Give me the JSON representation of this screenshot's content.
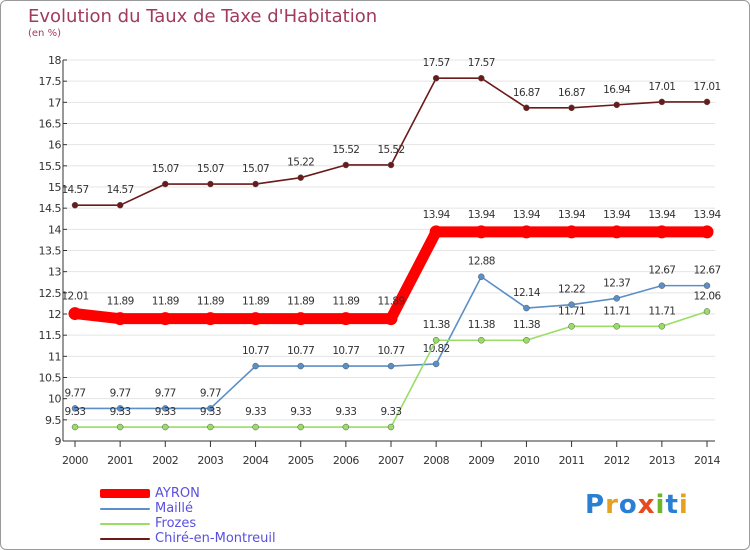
{
  "chart_data": {
    "type": "line",
    "title": "Evolution du Taux de Taxe d'Habitation",
    "subtitle": "(en %)",
    "x": [
      "2000",
      "2001",
      "2002",
      "2003",
      "2004",
      "2005",
      "2006",
      "2007",
      "2008",
      "2009",
      "2010",
      "2011",
      "2012",
      "2013",
      "2014"
    ],
    "ylim": [
      9,
      18
    ],
    "yticks": [
      "9",
      "9.5",
      "10",
      "10.5",
      "11",
      "11.5",
      "12",
      "12.5",
      "13",
      "13.5",
      "14",
      "14.5",
      "15",
      "15.5",
      "16",
      "16.5",
      "17",
      "17.5",
      "18"
    ],
    "grid": "horizontal",
    "legend_position": "bottom-left",
    "series": [
      {
        "name": "Chiré-en-Montreuil",
        "color": "#6b1a1a",
        "emphasis": false,
        "values": [
          14.57,
          14.57,
          15.07,
          15.07,
          15.07,
          15.22,
          15.52,
          15.52,
          17.57,
          17.57,
          16.87,
          16.87,
          16.94,
          17.01,
          17.01
        ],
        "labels": [
          "14.57",
          "14.57",
          "15.07",
          "15.07",
          "15.07",
          "15.22",
          "15.52",
          "15.52",
          "17.57",
          "17.57",
          "16.87",
          "16.87",
          "16.94",
          "17.01",
          "17.01"
        ]
      },
      {
        "name": "Maillé",
        "color": "#5b8fc7",
        "emphasis": false,
        "values": [
          9.77,
          9.77,
          9.77,
          9.77,
          10.77,
          10.77,
          10.77,
          10.77,
          10.82,
          12.88,
          12.14,
          12.22,
          12.37,
          12.67,
          12.67
        ],
        "labels": [
          "9.77",
          "9.77",
          "9.77",
          "9.77",
          "10.77",
          "10.77",
          "10.77",
          "10.77",
          "10.82",
          "12.88",
          "12.14",
          "12.22",
          "12.37",
          "12.67",
          "12.67"
        ]
      },
      {
        "name": "Frozes",
        "color": "#99dd66",
        "emphasis": false,
        "values": [
          9.33,
          9.33,
          9.33,
          9.33,
          9.33,
          9.33,
          9.33,
          9.33,
          11.38,
          11.38,
          11.38,
          11.71,
          11.71,
          11.71,
          12.06
        ],
        "labels": [
          "9.33",
          "9.33",
          "9.33",
          "9.33",
          "9.33",
          "9.33",
          "9.33",
          "9.33",
          "11.38",
          "11.38",
          "11.38",
          "11.71",
          "11.71",
          "11.71",
          "12.06"
        ]
      },
      {
        "name": "AYRON",
        "color": "#ff0000",
        "emphasis": true,
        "values": [
          12.01,
          11.89,
          11.89,
          11.89,
          11.89,
          11.89,
          11.89,
          11.89,
          13.94,
          13.94,
          13.94,
          13.94,
          13.94,
          13.94,
          13.94
        ],
        "labels": [
          "12.01",
          "11.89",
          "11.89",
          "11.89",
          "11.89",
          "11.89",
          "11.89",
          "11.89",
          "13.94",
          "13.94",
          "13.94",
          "13.94",
          "13.94",
          "13.94",
          "13.94"
        ]
      }
    ],
    "legend": [
      {
        "name": "AYRON",
        "color": "#ff0000",
        "emphasis": true
      },
      {
        "name": "Maillé",
        "color": "#5b8fc7",
        "emphasis": false
      },
      {
        "name": "Frozes",
        "color": "#99dd66",
        "emphasis": false
      },
      {
        "name": "Chiré-en-Montreuil",
        "color": "#6b1a1a",
        "emphasis": false
      }
    ]
  },
  "logo": {
    "text": "Proxiti",
    "colors": [
      "#2a7fd4",
      "#e8a020",
      "#2a7fd4",
      "#e84a20",
      "#6ab82a",
      "#2a7fd4",
      "#e8a020"
    ]
  }
}
